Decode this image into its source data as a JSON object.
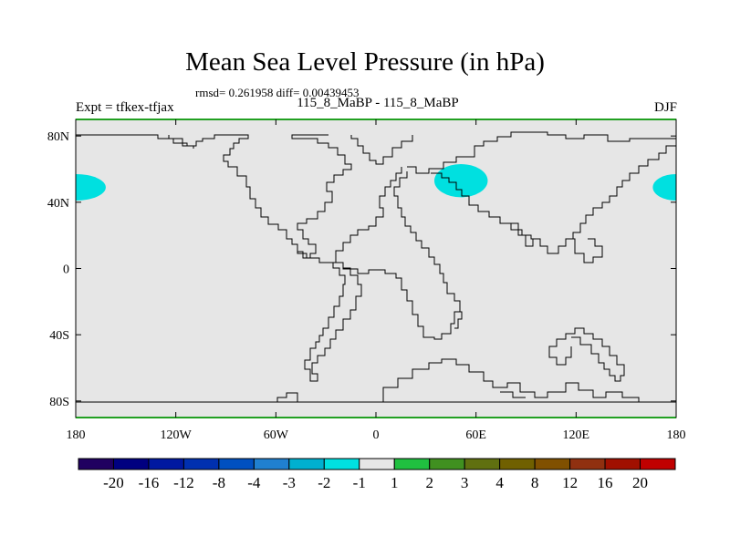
{
  "title": "Mean Sea Level Pressure (in hPa)",
  "stats_text": "rmsd= 0.261958 diff= 0.00439453",
  "subtitle": "115_8_MaBP - 115_8_MaBP",
  "left_label": "Expt = tfkex-tfjax",
  "right_label": "DJF",
  "map": {
    "projection": "cylindrical-equidistant",
    "lon_range": [
      -180,
      180
    ],
    "lat_range": [
      -90,
      90
    ],
    "background_color": "#e6e6e6",
    "anomaly_color": "#00e0e0",
    "x_ticks": [
      {
        "lon": -180,
        "label": "180"
      },
      {
        "lon": -120,
        "label": "120W"
      },
      {
        "lon": -60,
        "label": "60W"
      },
      {
        "lon": 0,
        "label": "0"
      },
      {
        "lon": 60,
        "label": "60E"
      },
      {
        "lon": 120,
        "label": "120E"
      },
      {
        "lon": 180,
        "label": "180"
      }
    ],
    "y_ticks": [
      {
        "lat": 80,
        "label": "80N"
      },
      {
        "lat": 40,
        "label": "40N"
      },
      {
        "lat": 0,
        "label": "0"
      },
      {
        "lat": -40,
        "label": "40S"
      },
      {
        "lat": -80,
        "label": "80S"
      }
    ],
    "anomaly_regions": [
      {
        "name": "north-pacific-west-edge",
        "lon": -180,
        "lat": 49,
        "lon_radius": 18,
        "lat_radius": 8
      },
      {
        "name": "central-asia",
        "lon": 51,
        "lat": 53,
        "lon_radius": 16,
        "lat_radius": 10
      },
      {
        "name": "north-pacific-east-edge",
        "lon": 180,
        "lat": 49,
        "lon_radius": 14,
        "lat_radius": 8
      }
    ]
  },
  "colorbar": {
    "colors": [
      "#200060",
      "#000080",
      "#0018a0",
      "#0030b0",
      "#0050c0",
      "#2080d0",
      "#00b0d0",
      "#00e0e0",
      "#e6e6e6",
      "#20c040",
      "#409020",
      "#607010",
      "#706000",
      "#805000",
      "#903010",
      "#a01000",
      "#c00000"
    ],
    "labels": [
      "-20",
      "-16",
      "-12",
      "-8",
      "-4",
      "-3",
      "-2",
      "-1",
      "1",
      "2",
      "3",
      "4",
      "8",
      "12",
      "16",
      "20"
    ]
  }
}
